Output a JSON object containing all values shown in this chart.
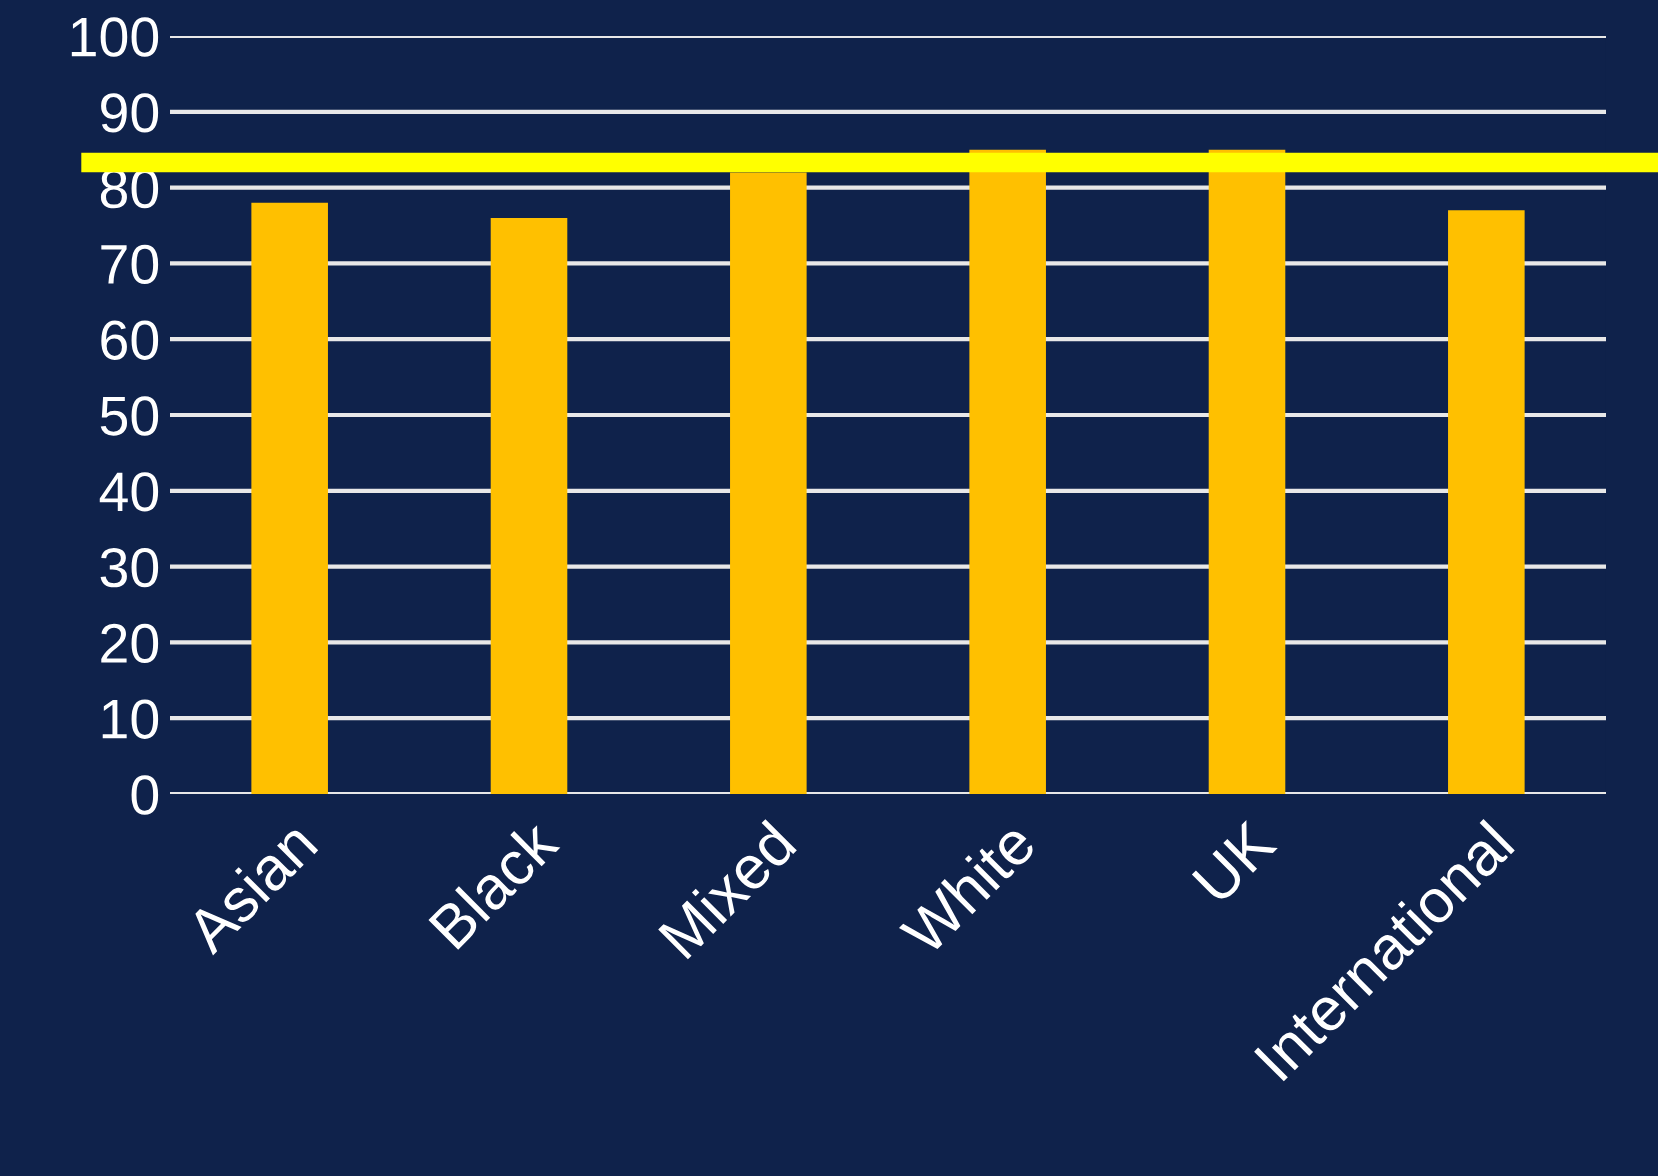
{
  "chart_data": {
    "type": "bar",
    "categories": [
      "Asian",
      "Black",
      "Mixed",
      "White",
      "UK",
      "International"
    ],
    "values": [
      78,
      76,
      82,
      85,
      85,
      77
    ],
    "color": "#ffc000",
    "ylim": [
      0,
      100
    ],
    "yticks": [
      0,
      10,
      20,
      30,
      40,
      50,
      60,
      70,
      80,
      90,
      100
    ],
    "grid": "y",
    "ref_lines": [
      {
        "axis": "y",
        "value": 83.3,
        "color": "#ffff00",
        "line_style": "solid"
      }
    ]
  }
}
